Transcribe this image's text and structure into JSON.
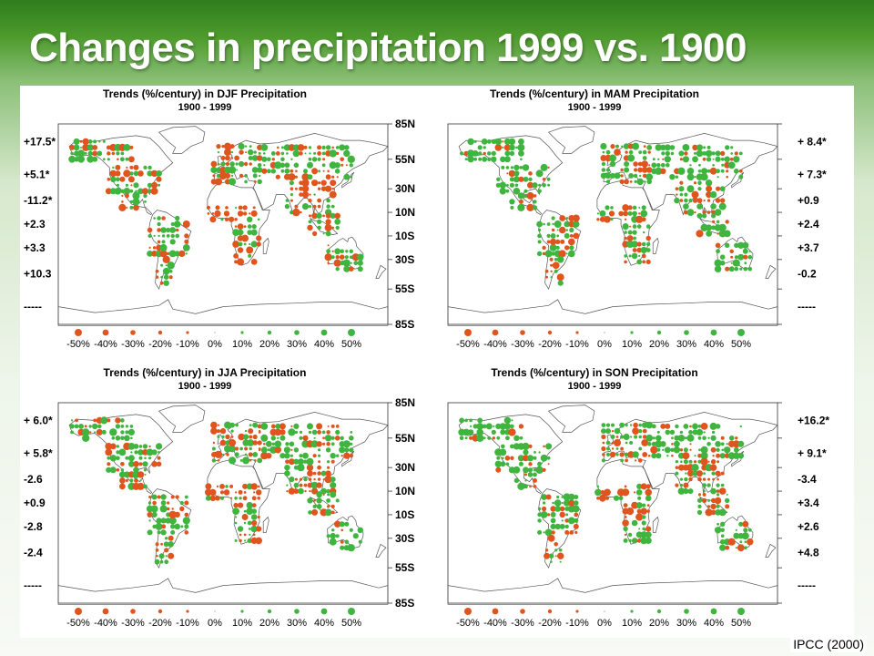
{
  "slide": {
    "title": "Changes in precipitation 1999 vs. 1900",
    "credit": "IPCC (2000)"
  },
  "colors": {
    "wetter": "#3fb53f",
    "drier": "#e0541e",
    "land_outline": "#555555"
  },
  "map_common": {
    "latitude_labels": [
      "85N",
      "55N",
      "30N",
      "10N",
      "10S",
      "30S",
      "55S",
      "85S"
    ],
    "legend_labels": [
      "-50%",
      "-40%",
      "-30%",
      "-20%",
      "-10%",
      "0%",
      "10%",
      "20%",
      "30%",
      "40%",
      "50%"
    ],
    "legend_values": [
      -50,
      -40,
      -30,
      -20,
      -10,
      0,
      10,
      20,
      30,
      40,
      50
    ]
  },
  "panels": [
    {
      "title": "Trends (%/century) in DJF Precipitation",
      "period": "1900 - 1999",
      "zonal_trends": [
        "+17.5*",
        "+5.1*",
        "-11.2*",
        "+2.3",
        "+3.3",
        "+10.3",
        "-----"
      ],
      "side": "left"
    },
    {
      "title": "Trends (%/century) in MAM Precipitation",
      "period": "1900 - 1999",
      "zonal_trends": [
        "+ 8.4*",
        "+ 7.3*",
        "+0.9",
        "+2.4",
        "+3.7",
        "-0.2",
        "-----"
      ],
      "side": "right"
    },
    {
      "title": "Trends (%/century) in JJA Precipitation",
      "period": "1900 - 1999",
      "zonal_trends": [
        "+ 6.0*",
        "+ 5.8*",
        "-2.6",
        "+0.9",
        "-2.8",
        "-2.4",
        "-----"
      ],
      "side": "left"
    },
    {
      "title": "Trends (%/century) in SON Precipitation",
      "period": "1900 - 1999",
      "zonal_trends": [
        "+16.2*",
        "+ 9.1*",
        "-3.4",
        "+3.4",
        "+2.6",
        "+4.8",
        "-----"
      ],
      "side": "right"
    }
  ]
}
